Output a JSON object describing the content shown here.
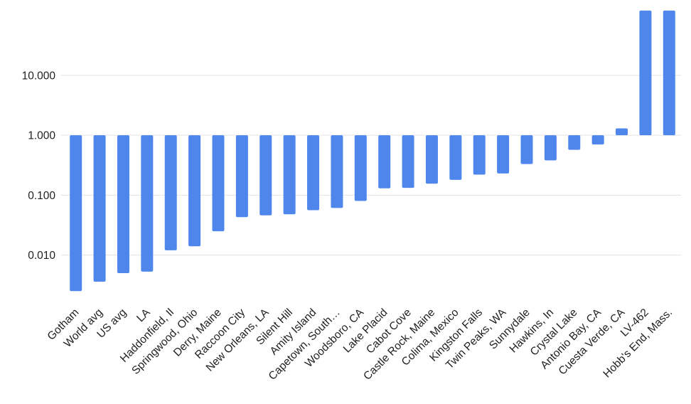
{
  "chart_data": {
    "type": "bar",
    "title": "",
    "orientation": "vertical",
    "scale": "log",
    "baseline": 1,
    "ylim": [
      0.0015,
      130
    ],
    "grid": true,
    "legend_position": "none",
    "bar_color": "#4e86ec",
    "gridline_color": "#e3e3e3",
    "label_color": "#1f1f1f",
    "categories": [
      "Gotham",
      "World avg",
      "US avg",
      "LA",
      "Haddonfield, Il",
      "Springwood, Ohio",
      "Derry, Maine",
      "Raccoon City",
      "New Orleans, LA",
      "Silent Hill",
      "Amity Island",
      "Capetown, South…",
      "Woodsboro, CA",
      "Lake Placid",
      "Cabot Cove",
      "Castle Rock, Maine",
      "Colima, Mexico",
      "Kingston Falls",
      "Twin Peaks, WA",
      "Sunnydale",
      "Hawkins, In",
      "Crystal Lake",
      "Antonio Bay, CA",
      "Cuesta Verde, CA",
      "LV-462",
      "Hobb's End, Mass."
    ],
    "values": [
      0.0025,
      0.0036,
      0.005,
      0.0053,
      0.012,
      0.014,
      0.025,
      0.043,
      0.046,
      0.048,
      0.056,
      0.061,
      0.08,
      0.13,
      0.132,
      0.155,
      0.18,
      0.22,
      0.23,
      0.33,
      0.38,
      0.57,
      0.7,
      1.3,
      120,
      120
    ],
    "yticks": [
      {
        "value": 10,
        "label": "10.000"
      },
      {
        "value": 1,
        "label": "1.000"
      },
      {
        "value": 0.1,
        "label": "0.100"
      },
      {
        "value": 0.01,
        "label": "0.010"
      }
    ],
    "xlabel": "",
    "ylabel": ""
  }
}
